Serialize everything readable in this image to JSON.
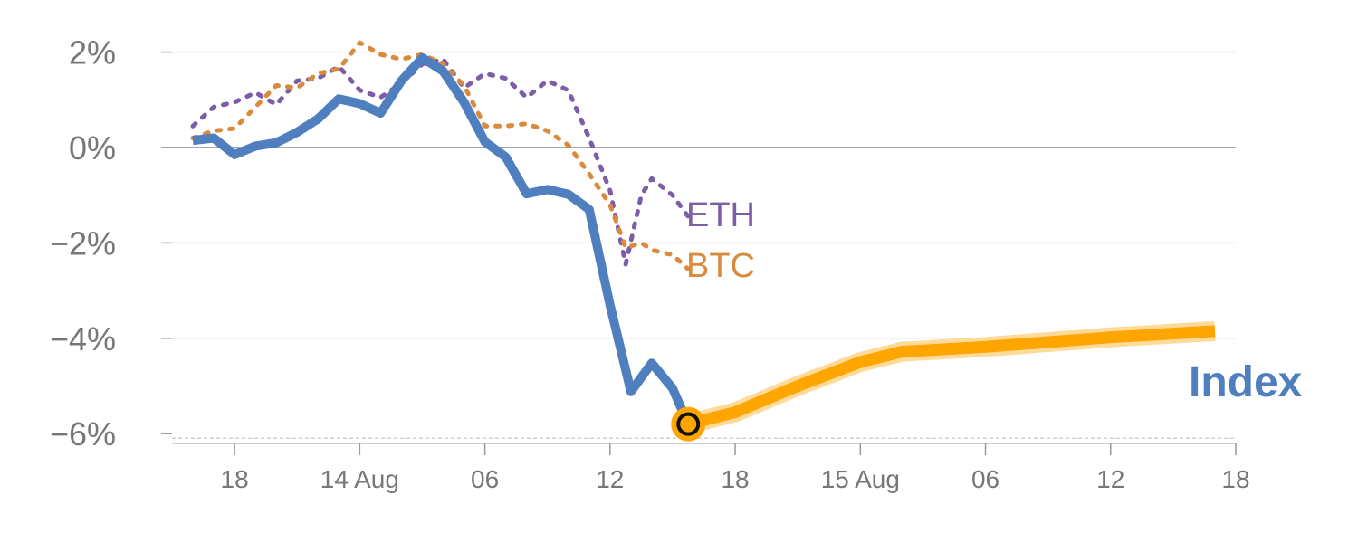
{
  "chart_data": {
    "type": "line",
    "title": "",
    "xlabel": "",
    "ylabel": "",
    "y_unit": "%",
    "ylim": [
      -6,
      2.3
    ],
    "xlim": [
      "13 Aug 15:00",
      "15 Aug 18:00"
    ],
    "yticks": [
      {
        "value": 2,
        "label": "2%"
      },
      {
        "value": 0,
        "label": "0%"
      },
      {
        "value": -2,
        "label": "−2%"
      },
      {
        "value": -4,
        "label": "−4%"
      },
      {
        "value": -6,
        "label": "−6%"
      }
    ],
    "xticks": [
      {
        "value": "13 Aug 18:00",
        "label": "18"
      },
      {
        "value": "14 Aug 00:00",
        "label": "14 Aug"
      },
      {
        "value": "14 Aug 06:00",
        "label": "06"
      },
      {
        "value": "14 Aug 12:00",
        "label": "12"
      },
      {
        "value": "14 Aug 18:00",
        "label": "18"
      },
      {
        "value": "15 Aug 00:00",
        "label": "15 Aug"
      },
      {
        "value": "15 Aug 06:00",
        "label": "06"
      },
      {
        "value": "15 Aug 12:00",
        "label": "12"
      },
      {
        "value": "15 Aug 18:00",
        "label": "18"
      }
    ],
    "grid": true,
    "series": [
      {
        "name": "Index",
        "color": "#4f7fbf",
        "style": "solid",
        "points": [
          [
            "13 Aug 16:00",
            0.15
          ],
          [
            "13 Aug 17:00",
            0.2
          ],
          [
            "13 Aug 18:00",
            -0.15
          ],
          [
            "13 Aug 19:00",
            0.03
          ],
          [
            "13 Aug 20:00",
            0.1
          ],
          [
            "13 Aug 21:00",
            0.32
          ],
          [
            "13 Aug 22:00",
            0.6
          ],
          [
            "13 Aug 23:00",
            1.02
          ],
          [
            "14 Aug 00:00",
            0.92
          ],
          [
            "14 Aug 01:00",
            0.72
          ],
          [
            "14 Aug 02:00",
            1.4
          ],
          [
            "14 Aug 03:00",
            1.88
          ],
          [
            "14 Aug 04:00",
            1.6
          ],
          [
            "14 Aug 05:00",
            0.95
          ],
          [
            "14 Aug 06:00",
            0.12
          ],
          [
            "14 Aug 07:00",
            -0.2
          ],
          [
            "14 Aug 08:00",
            -0.97
          ],
          [
            "14 Aug 09:00",
            -0.88
          ],
          [
            "14 Aug 10:00",
            -0.98
          ],
          [
            "14 Aug 11:00",
            -1.3
          ],
          [
            "14 Aug 12:00",
            -3.3
          ],
          [
            "14 Aug 13:00",
            -5.12
          ],
          [
            "14 Aug 14:00",
            -4.52
          ],
          [
            "14 Aug 15:00",
            -5.05
          ],
          [
            "14 Aug 15:45",
            -5.8
          ]
        ]
      },
      {
        "name": "ETH",
        "color": "#7c5da6",
        "style": "dotted",
        "points": [
          [
            "13 Aug 16:00",
            0.45
          ],
          [
            "13 Aug 17:00",
            0.85
          ],
          [
            "13 Aug 18:00",
            0.95
          ],
          [
            "13 Aug 19:00",
            1.15
          ],
          [
            "13 Aug 20:00",
            0.9
          ],
          [
            "13 Aug 21:00",
            1.4
          ],
          [
            "13 Aug 22:00",
            1.45
          ],
          [
            "13 Aug 23:00",
            1.7
          ],
          [
            "14 Aug 00:00",
            1.2
          ],
          [
            "14 Aug 01:00",
            1.05
          ],
          [
            "14 Aug 02:00",
            1.35
          ],
          [
            "14 Aug 03:00",
            1.75
          ],
          [
            "14 Aug 04:00",
            1.85
          ],
          [
            "14 Aug 05:00",
            1.25
          ],
          [
            "14 Aug 06:00",
            1.55
          ],
          [
            "14 Aug 07:00",
            1.45
          ],
          [
            "14 Aug 08:00",
            1.05
          ],
          [
            "14 Aug 09:00",
            1.4
          ],
          [
            "14 Aug 10:00",
            1.2
          ],
          [
            "14 Aug 11:00",
            0.2
          ],
          [
            "14 Aug 12:00",
            -0.9
          ],
          [
            "14 Aug 12:45",
            -2.45
          ],
          [
            "14 Aug 13:30",
            -1.0
          ],
          [
            "14 Aug 14:00",
            -0.65
          ],
          [
            "14 Aug 15:00",
            -1.0
          ],
          [
            "14 Aug 15:45",
            -1.45
          ]
        ]
      },
      {
        "name": "BTC",
        "color": "#d98a3d",
        "style": "dotted",
        "points": [
          [
            "13 Aug 16:00",
            0.2
          ],
          [
            "13 Aug 17:00",
            0.35
          ],
          [
            "13 Aug 18:00",
            0.4
          ],
          [
            "13 Aug 19:00",
            0.85
          ],
          [
            "13 Aug 20:00",
            1.3
          ],
          [
            "13 Aug 21:00",
            1.25
          ],
          [
            "13 Aug 22:00",
            1.55
          ],
          [
            "13 Aug 23:00",
            1.65
          ],
          [
            "14 Aug 00:00",
            2.2
          ],
          [
            "14 Aug 01:00",
            1.95
          ],
          [
            "14 Aug 02:00",
            1.85
          ],
          [
            "14 Aug 03:00",
            1.95
          ],
          [
            "14 Aug 04:00",
            1.75
          ],
          [
            "14 Aug 05:00",
            1.3
          ],
          [
            "14 Aug 06:00",
            0.45
          ],
          [
            "14 Aug 07:00",
            0.45
          ],
          [
            "14 Aug 08:00",
            0.5
          ],
          [
            "14 Aug 09:00",
            0.35
          ],
          [
            "14 Aug 10:00",
            0.05
          ],
          [
            "14 Aug 11:00",
            -0.55
          ],
          [
            "14 Aug 12:00",
            -1.2
          ],
          [
            "14 Aug 12:45",
            -2.1
          ],
          [
            "14 Aug 13:30",
            -2.0
          ],
          [
            "14 Aug 14:00",
            -2.15
          ],
          [
            "14 Aug 15:00",
            -2.25
          ],
          [
            "14 Aug 15:45",
            -2.55
          ]
        ]
      },
      {
        "name": "Index",
        "color": "#ffa500",
        "style": "projection",
        "points": [
          [
            "14 Aug 15:45",
            -5.8
          ],
          [
            "14 Aug 18:00",
            -5.55
          ],
          [
            "14 Aug 21:00",
            -5.0
          ],
          [
            "15 Aug 00:00",
            -4.5
          ],
          [
            "15 Aug 02:00",
            -4.28
          ],
          [
            "15 Aug 06:00",
            -4.18
          ],
          [
            "15 Aug 12:00",
            -3.98
          ],
          [
            "15 Aug 17:00",
            -3.85
          ]
        ]
      }
    ],
    "labels": {
      "index": "Index",
      "eth": "ETH",
      "btc": "BTC"
    }
  }
}
